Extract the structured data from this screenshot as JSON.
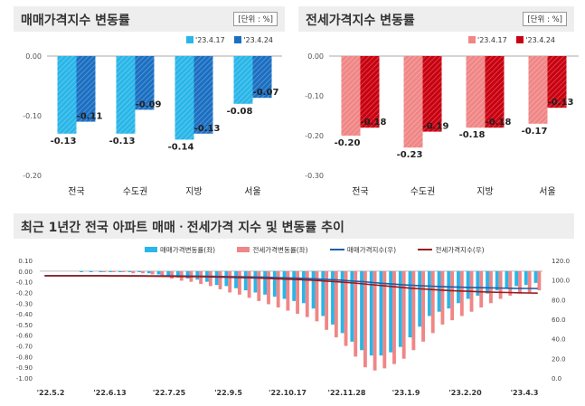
{
  "colors": {
    "sale_light": "#29b6e8",
    "sale_dark": "#1b6fc2",
    "jeonse_light": "#f08686",
    "jeonse_dark": "#c9000f",
    "header_bg": "#eeeeee",
    "sale_line": "#1f5fa6",
    "jeonse_line": "#9b1b1b"
  },
  "chart_data": [
    {
      "type": "bar",
      "title": "매매가격지수 변동률",
      "unit": "[단위 : %]",
      "categories": [
        "전국",
        "수도권",
        "지방",
        "서울"
      ],
      "series": [
        {
          "name": "'23.4.17",
          "values": [
            -0.13,
            -0.13,
            -0.14,
            -0.08
          ]
        },
        {
          "name": "'23.4.24",
          "values": [
            -0.11,
            -0.09,
            -0.13,
            -0.07
          ]
        }
      ],
      "ylim": [
        -0.2,
        0.0
      ],
      "yticks": [
        "0.00",
        "-0.10",
        "-0.20"
      ],
      "value_labels": [
        [
          "-0.13",
          "-0.13",
          "-0.14",
          "-0.08"
        ],
        [
          "-0.11",
          "-0.09",
          "-0.13",
          "-0.07"
        ]
      ]
    },
    {
      "type": "bar",
      "title": "전세가격지수 변동률",
      "unit": "[단위 : %]",
      "categories": [
        "전국",
        "수도권",
        "지방",
        "서울"
      ],
      "series": [
        {
          "name": "'23.4.17",
          "values": [
            -0.2,
            -0.23,
            -0.18,
            -0.17
          ]
        },
        {
          "name": "'23.4.24",
          "values": [
            -0.18,
            -0.19,
            -0.18,
            -0.13
          ]
        }
      ],
      "ylim": [
        -0.3,
        0.0
      ],
      "yticks": [
        "0.00",
        "-0.10",
        "-0.20",
        "-0.30"
      ],
      "value_labels": [
        [
          "-0.20",
          "-0.23",
          "-0.18",
          "-0.17"
        ],
        [
          "-0.18",
          "-0.19",
          "-0.18",
          "-0.13"
        ]
      ]
    },
    {
      "type": "bar",
      "title": "최근 1년간 전국 아파트 매매ㆍ전세가격 지수 및 변동률 추이",
      "x_tick_labels": [
        "'22.5.2",
        "'22.6.13",
        "'22.7.25",
        "'22.9.5",
        "'22.10.17",
        "'22.11.28",
        "'23.1.9",
        "'23.2.20",
        "'23.4.3"
      ],
      "y_left": {
        "ylim": [
          -1.0,
          0.1
        ],
        "ticks": [
          "0.10",
          "0.00",
          "-0.10",
          "-0.20",
          "-0.30",
          "-0.40",
          "-0.50",
          "-0.60",
          "-0.70",
          "-0.80",
          "-0.90",
          "-1.00"
        ]
      },
      "y_right": {
        "ylim": [
          0.0,
          120.0
        ],
        "ticks": [
          "120.0",
          "100.0",
          "80.0",
          "60.0",
          "40.0",
          "20.0",
          "0.0"
        ]
      },
      "series": [
        {
          "name": "매매가격변동률(좌)",
          "kind": "bar",
          "values": [
            0.0,
            0.0,
            0.0,
            0.0,
            -0.01,
            -0.01,
            -0.01,
            -0.01,
            -0.01,
            -0.01,
            -0.01,
            -0.02,
            -0.03,
            -0.04,
            -0.06,
            -0.07,
            -0.08,
            -0.1,
            -0.13,
            -0.14,
            -0.16,
            -0.18,
            -0.2,
            -0.22,
            -0.24,
            -0.26,
            -0.28,
            -0.3,
            -0.35,
            -0.42,
            -0.5,
            -0.58,
            -0.66,
            -0.74,
            -0.79,
            -0.79,
            -0.76,
            -0.71,
            -0.62,
            -0.52,
            -0.42,
            -0.38,
            -0.35,
            -0.3,
            -0.26,
            -0.23,
            -0.21,
            -0.18,
            -0.16,
            -0.14,
            -0.13,
            -0.11
          ]
        },
        {
          "name": "전세가격변동률(좌)",
          "kind": "bar",
          "values": [
            0.0,
            0.0,
            0.0,
            0.0,
            0.0,
            0.0,
            -0.01,
            -0.01,
            -0.01,
            -0.02,
            -0.02,
            -0.03,
            -0.05,
            -0.07,
            -0.09,
            -0.1,
            -0.12,
            -0.14,
            -0.17,
            -0.2,
            -0.22,
            -0.25,
            -0.28,
            -0.31,
            -0.34,
            -0.37,
            -0.4,
            -0.43,
            -0.47,
            -0.55,
            -0.62,
            -0.7,
            -0.8,
            -0.9,
            -0.93,
            -0.91,
            -0.87,
            -0.82,
            -0.74,
            -0.66,
            -0.58,
            -0.5,
            -0.46,
            -0.42,
            -0.38,
            -0.34,
            -0.3,
            -0.26,
            -0.23,
            -0.21,
            -0.2,
            -0.18
          ]
        },
        {
          "name": "매매가격지수(우)",
          "kind": "line",
          "values": [
            104.5,
            104.5,
            104.5,
            104.5,
            104.5,
            104.5,
            104.5,
            104.4,
            104.4,
            104.4,
            104.4,
            104.3,
            104.3,
            104.2,
            104.1,
            104.0,
            103.9,
            103.8,
            103.7,
            103.5,
            103.4,
            103.2,
            103.0,
            102.8,
            102.5,
            102.2,
            101.9,
            101.6,
            101.2,
            100.7,
            100.2,
            99.6,
            98.9,
            98.2,
            97.4,
            96.6,
            95.9,
            95.2,
            94.6,
            94.1,
            93.7,
            93.3,
            93.0,
            92.7,
            92.4,
            92.2,
            92.0,
            91.8,
            91.6,
            91.5,
            91.4,
            91.3
          ]
        },
        {
          "name": "전세가격지수(우)",
          "kind": "line",
          "values": [
            104.2,
            104.2,
            104.2,
            104.2,
            104.2,
            104.2,
            104.2,
            104.1,
            104.1,
            104.0,
            104.0,
            103.9,
            103.8,
            103.7,
            103.6,
            103.5,
            103.4,
            103.2,
            103.0,
            102.8,
            102.6,
            102.3,
            102.0,
            101.7,
            101.3,
            100.9,
            100.5,
            100.1,
            99.6,
            99.0,
            98.4,
            97.7,
            96.9,
            96.0,
            95.1,
            94.2,
            93.3,
            92.4,
            91.6,
            90.9,
            90.3,
            89.7,
            89.2,
            88.8,
            88.4,
            88.0,
            87.7,
            87.4,
            87.2,
            87.0,
            86.8,
            86.6
          ]
        }
      ]
    }
  ]
}
